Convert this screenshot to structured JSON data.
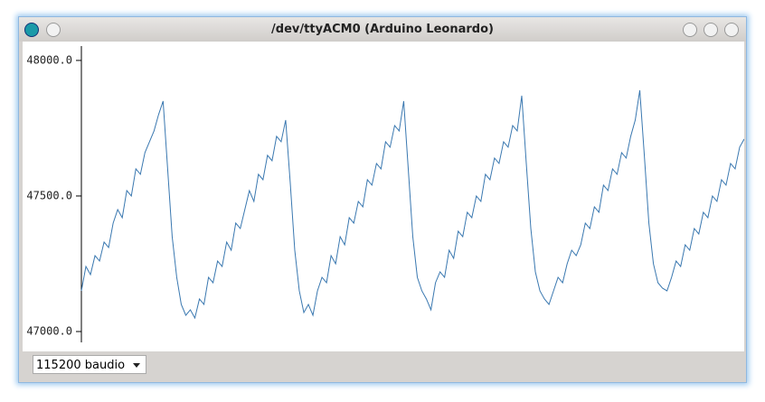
{
  "window": {
    "title": "/dev/ttyACM0 (Arduino Leonardo)"
  },
  "chart_data": {
    "type": "line",
    "series": [
      {
        "color": "#3a78b0",
        "values": [
          47150,
          47240,
          47210,
          47280,
          47260,
          47330,
          47310,
          47400,
          47450,
          47420,
          47520,
          47500,
          47600,
          47580,
          47660,
          47700,
          47740,
          47800,
          47850,
          47600,
          47350,
          47200,
          47100,
          47060,
          47080,
          47050,
          47120,
          47100,
          47200,
          47180,
          47260,
          47240,
          47330,
          47300,
          47400,
          47380,
          47450,
          47520,
          47480,
          47580,
          47560,
          47650,
          47630,
          47720,
          47700,
          47780,
          47550,
          47300,
          47150,
          47070,
          47100,
          47060,
          47150,
          47200,
          47180,
          47280,
          47250,
          47350,
          47320,
          47420,
          47400,
          47480,
          47460,
          47560,
          47540,
          47620,
          47600,
          47700,
          47680,
          47760,
          47740,
          47850,
          47600,
          47350,
          47200,
          47150,
          47120,
          47080,
          47180,
          47220,
          47200,
          47300,
          47270,
          47370,
          47350,
          47440,
          47420,
          47500,
          47480,
          47580,
          47560,
          47640,
          47620,
          47700,
          47680,
          47760,
          47740,
          47870,
          47620,
          47380,
          47220,
          47150,
          47120,
          47100,
          47150,
          47200,
          47180,
          47250,
          47300,
          47280,
          47320,
          47400,
          47380,
          47460,
          47440,
          47540,
          47520,
          47600,
          47580,
          47660,
          47640,
          47720,
          47780,
          47890,
          47650,
          47400,
          47250,
          47180,
          47160,
          47150,
          47200,
          47260,
          47240,
          47320,
          47300,
          47380,
          47360,
          47440,
          47420,
          47500,
          47480,
          47560,
          47540,
          47620,
          47600,
          47680,
          47710
        ]
      }
    ],
    "ylim": [
      46960,
      48053
    ],
    "yticks": [
      {
        "value": 47000,
        "label": "47000.0"
      },
      {
        "value": 47500,
        "label": "47500.0"
      },
      {
        "value": 48000,
        "label": "48000.0"
      }
    ]
  },
  "baud_select": "115200 baudio"
}
